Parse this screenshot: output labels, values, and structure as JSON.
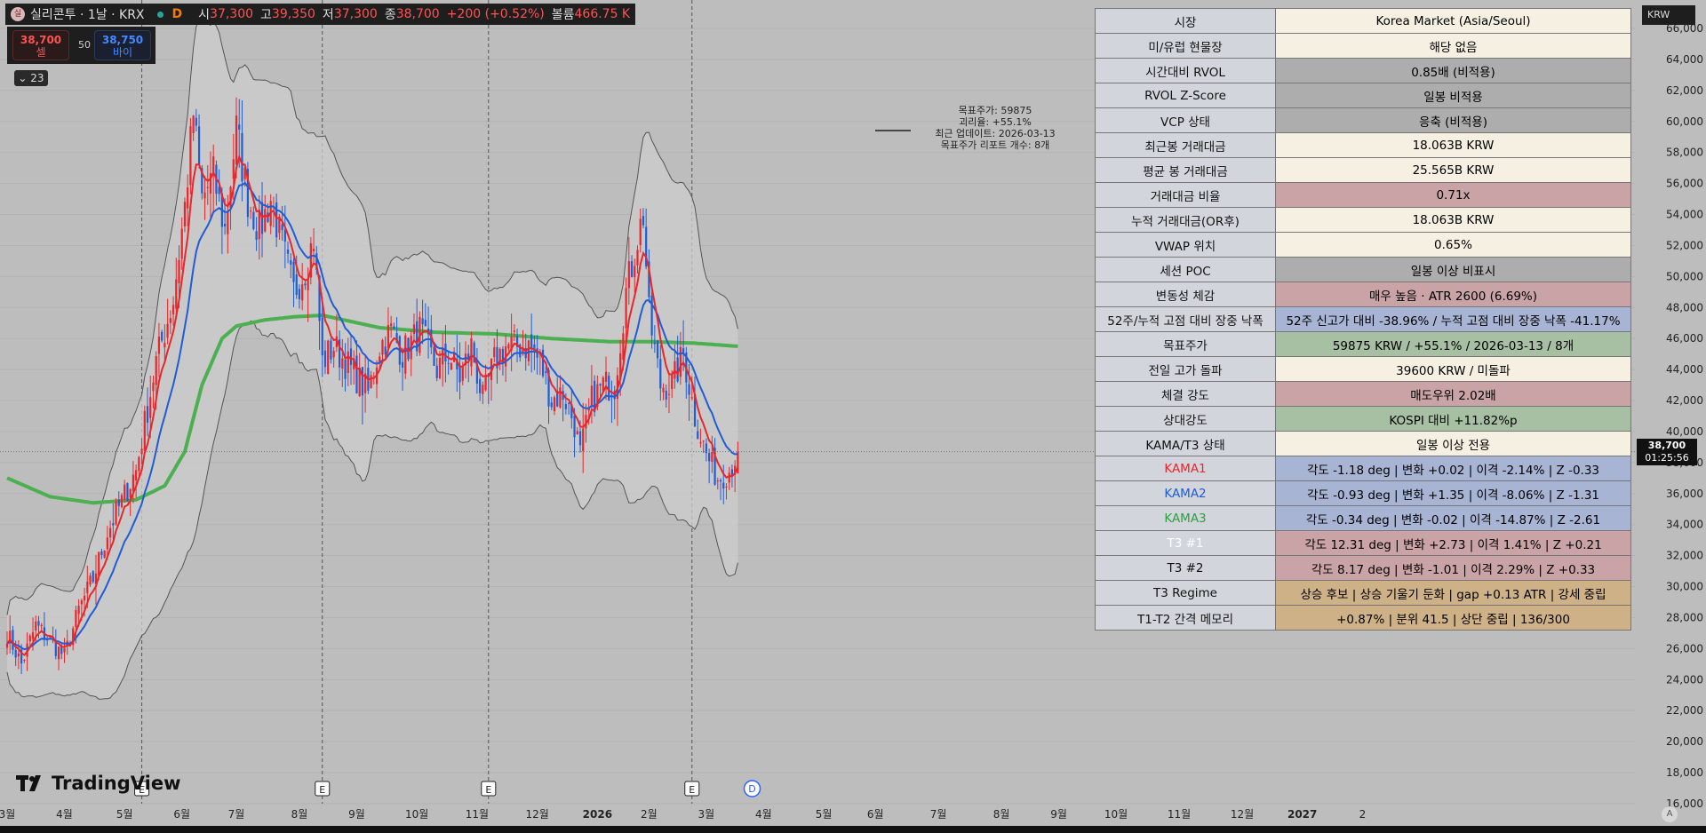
{
  "header": {
    "symbol": "실리콘투 · 1날 · KRX",
    "flag": "D",
    "open_label": "시",
    "open": "37,300",
    "high_label": "고",
    "high": "39,350",
    "low_label": "저",
    "low": "37,300",
    "close_label": "종",
    "close": "38,700",
    "change": "+200 (+0.52%)",
    "volume_label": "볼륨",
    "volume": "466.75 K"
  },
  "trade": {
    "sell_price": "38,700",
    "sell_label": "셀",
    "spread": "50",
    "buy_price": "38,750",
    "buy_label": "바이"
  },
  "indicator_toggle": "⌄ 23",
  "currency": "KRW",
  "last_price_tag": {
    "price": "38,700",
    "countdown": "01:25:56"
  },
  "annotation": [
    "목표주가: 59875",
    "괴리율: +55.1%",
    "최근 업데이트: 2026-03-13",
    "목표주가 리포트 개수: 8개"
  ],
  "brand": "TradingView",
  "colors": {
    "up": "#e8262b",
    "down": "#1f5cd6",
    "kama1": "#e8262b",
    "kama2": "#1f5cd6",
    "kama3": "#4caf50",
    "band_fill": "#cdcdcd",
    "band_line": "#555555",
    "background": "#bdbdbd"
  },
  "panel": {
    "rows": [
      {
        "key": "시장",
        "value": "Korea Market (Asia/Seoul)",
        "bg": "#f5f0e1"
      },
      {
        "key": "미/유럽 현물장",
        "value": "해당 없음",
        "bg": "#f5f0e1"
      },
      {
        "key": "시간대비 RVOL",
        "value": "0.85배 (비적용)",
        "bg": "#adadad"
      },
      {
        "key": "RVOL Z-Score",
        "value": "일봉 비적용",
        "bg": "#adadad"
      },
      {
        "key": "VCP 상태",
        "value": "응축 (비적용)",
        "bg": "#adadad"
      },
      {
        "key": "최근봉 거래대금",
        "value": "18.063B KRW",
        "bg": "#f5f0e1"
      },
      {
        "key": "평균 봉 거래대금",
        "value": "25.565B KRW",
        "bg": "#f5f0e1"
      },
      {
        "key": "거래대금 비율",
        "value": "0.71x",
        "bg": "#c9a3a5"
      },
      {
        "key": "누적 거래대금(OR후)",
        "value": "18.063B KRW",
        "bg": "#f5f0e1"
      },
      {
        "key": "VWAP 위치",
        "value": "0.65%",
        "bg": "#f5f0e1"
      },
      {
        "key": "세션 POC",
        "value": "일봉 이상 비표시",
        "bg": "#adadad"
      },
      {
        "key": "변동성 체감",
        "value": "매우 높음 · ATR 2600 (6.69%)",
        "bg": "#c9a3a5"
      },
      {
        "key": "52주/누적 고점 대비 장중 낙폭",
        "value": "52주 신고가 대비 -38.96% / 누적 고점 대비 장중 낙폭 -41.17%",
        "bg": "#a8b4d4"
      },
      {
        "key": "목표주가",
        "value": "59875 KRW / +55.1% / 2026-03-13 / 8개",
        "bg": "#a7bfa3"
      },
      {
        "key": "전일 고가 돌파",
        "value": "39600 KRW / 미돌파",
        "bg": "#f5f0e1"
      },
      {
        "key": "체결 강도",
        "value": "매도우위 2.02배",
        "bg": "#c9a3a5"
      },
      {
        "key": "상대강도",
        "value": "KOSPI 대비 +11.82%p",
        "bg": "#a7bfa3"
      },
      {
        "key": "KAMA/T3 상태",
        "value": "일봉 이상 전용",
        "bg": "#f5f0e1"
      },
      {
        "key": "KAMA1",
        "value": "각도 -1.18 deg | 변화 +0.02 | 이격 -2.14% | Z -0.33",
        "bg": "#a8b4d4",
        "key_color": "#e8262b"
      },
      {
        "key": "KAMA2",
        "value": "각도 -0.93 deg | 변화 +1.35 | 이격 -8.06% | Z -1.31",
        "bg": "#a8b4d4",
        "key_color": "#1f5cd6"
      },
      {
        "key": "KAMA3",
        "value": "각도 -0.34 deg | 변화 -0.02 | 이격 -14.87% | Z -2.61",
        "bg": "#a8b4d4",
        "key_color": "#2e9e3e"
      },
      {
        "key": "T3 #1",
        "value": "각도 12.31 deg | 변화 +2.73 | 이격 1.41% | Z +0.21",
        "bg": "#c9a3a5",
        "key_color": "#ffffff"
      },
      {
        "key": "T3 #2",
        "value": "각도 8.17 deg | 변화 -1.01 | 이격 2.29% | Z +0.33",
        "bg": "#c9a3a5"
      },
      {
        "key": "T3 Regime",
        "value": "상승 후보 | 상승 기울기 둔화 | gap +0.13 ATR | 강세 중립",
        "bg": "#cfb187"
      },
      {
        "key": "T1-T2 간격 메모리",
        "value": "+0.87% | 분위 41.5 | 상단 중립 | 136/300",
        "bg": "#cfb187"
      }
    ]
  },
  "chart_data": {
    "type": "candlestick",
    "currency": "KRW",
    "ylim": [
      15000,
      67000
    ],
    "y_ticks": [
      16000,
      18000,
      20000,
      22000,
      24000,
      26000,
      28000,
      30000,
      32000,
      34000,
      36000,
      38000,
      40000,
      42000,
      44000,
      46000,
      48000,
      50000,
      52000,
      54000,
      56000,
      58000,
      60000,
      62000,
      64000,
      66000
    ],
    "x_ticks": [
      "3월",
      "4월",
      "5월",
      "6월",
      "7월",
      "8월",
      "9월",
      "10월",
      "11월",
      "12월",
      "2026",
      "2월",
      "3월",
      "4월",
      "5월",
      "6월",
      "7월",
      "8월",
      "9월",
      "10월",
      "11월",
      "12월",
      "2027",
      "2"
    ],
    "x_tick_index": [
      0,
      20,
      41,
      61,
      80,
      102,
      122,
      143,
      164,
      185,
      206,
      224,
      244,
      264,
      285,
      303,
      325,
      347,
      367,
      387,
      409,
      431,
      452,
      473
    ],
    "earnings_markers": [
      {
        "index": 47,
        "label": "E"
      },
      {
        "index": 110,
        "label": "E"
      },
      {
        "index": 168,
        "label": "E"
      },
      {
        "index": 239,
        "label": "E"
      }
    ],
    "dividend_marker": {
      "index": 260,
      "label": "D"
    },
    "last_index": 255,
    "last_price": 38700,
    "dashed_verticals": [
      47,
      110,
      168,
      239
    ],
    "anchors": [
      [
        0,
        27000
      ],
      [
        5,
        25000
      ],
      [
        10,
        27500
      ],
      [
        15,
        26500
      ],
      [
        20,
        25500
      ],
      [
        25,
        28500
      ],
      [
        30,
        30500
      ],
      [
        35,
        33500
      ],
      [
        40,
        35500
      ],
      [
        45,
        37500
      ],
      [
        48,
        40500
      ],
      [
        52,
        44500
      ],
      [
        58,
        48500
      ],
      [
        62,
        54500
      ],
      [
        65,
        60500
      ],
      [
        68,
        55000
      ],
      [
        72,
        56500
      ],
      [
        76,
        53000
      ],
      [
        80,
        59500
      ],
      [
        84,
        55000
      ],
      [
        88,
        53000
      ],
      [
        92,
        55000
      ],
      [
        96,
        52000
      ],
      [
        100,
        49000
      ],
      [
        104,
        50500
      ],
      [
        107,
        52500
      ],
      [
        110,
        44500
      ],
      [
        114,
        45500
      ],
      [
        118,
        44500
      ],
      [
        122,
        43500
      ],
      [
        126,
        42500
      ],
      [
        130,
        45500
      ],
      [
        134,
        46500
      ],
      [
        138,
        45000
      ],
      [
        144,
        46500
      ],
      [
        150,
        44000
      ],
      [
        154,
        45000
      ],
      [
        158,
        43500
      ],
      [
        162,
        45500
      ],
      [
        166,
        42000
      ],
      [
        170,
        44500
      ],
      [
        174,
        45500
      ],
      [
        178,
        45500
      ],
      [
        182,
        45500
      ],
      [
        186,
        44500
      ],
      [
        190,
        42000
      ],
      [
        194,
        42500
      ],
      [
        198,
        40500
      ],
      [
        200,
        38500
      ],
      [
        204,
        42000
      ],
      [
        208,
        43000
      ],
      [
        212,
        43000
      ],
      [
        216,
        49000
      ],
      [
        220,
        52500
      ],
      [
        222,
        54000
      ],
      [
        224,
        47500
      ],
      [
        228,
        43000
      ],
      [
        232,
        43000
      ],
      [
        236,
        45000
      ],
      [
        240,
        41000
      ],
      [
        244,
        38500
      ],
      [
        248,
        37000
      ],
      [
        252,
        37500
      ],
      [
        255,
        38700
      ]
    ],
    "kama3_anchors": [
      [
        0,
        37000
      ],
      [
        15,
        35800
      ],
      [
        30,
        35400
      ],
      [
        45,
        35600
      ],
      [
        55,
        36500
      ],
      [
        62,
        38700
      ],
      [
        68,
        43000
      ],
      [
        75,
        46000
      ],
      [
        80,
        46800
      ],
      [
        90,
        47200
      ],
      [
        100,
        47400
      ],
      [
        110,
        47500
      ],
      [
        130,
        46700
      ],
      [
        150,
        46400
      ],
      [
        170,
        46300
      ],
      [
        190,
        46000
      ],
      [
        210,
        45800
      ],
      [
        225,
        45800
      ],
      [
        240,
        45700
      ],
      [
        255,
        45500
      ]
    ]
  }
}
